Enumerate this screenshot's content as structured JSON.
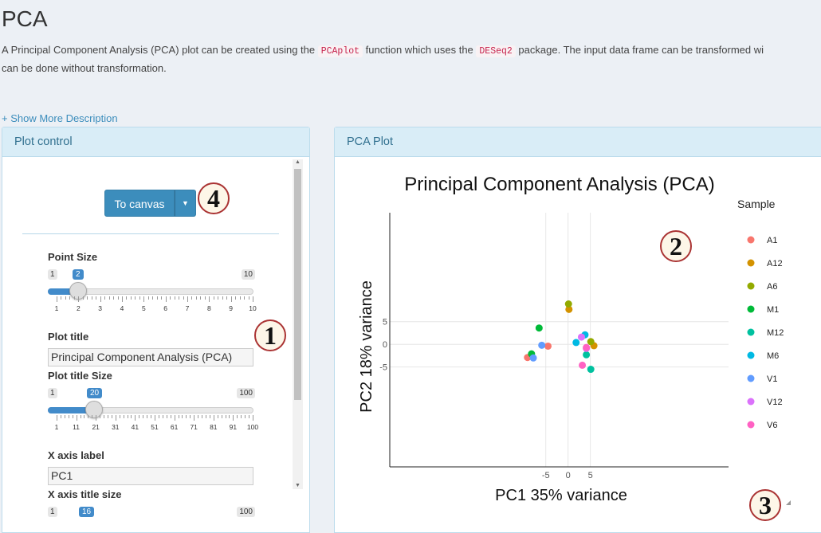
{
  "page": {
    "title": "PCA",
    "description": {
      "part1": "A Principal Component Analysis (PCA) plot can be created using the ",
      "code1": "PCAplot",
      "part2": " function which uses the ",
      "code2": "DESeq2",
      "part3": " package. The input data frame can be transformed wi",
      "line2": "can be done without transformation."
    },
    "show_more": "+ Show More Description"
  },
  "plot_control": {
    "header": "Plot control",
    "to_canvas_label": "To canvas",
    "point_size": {
      "label": "Point Size",
      "min": "1",
      "max": "10",
      "value": "2",
      "ticks": [
        "1",
        "2",
        "3",
        "4",
        "5",
        "6",
        "7",
        "8",
        "9",
        "10"
      ]
    },
    "plot_title": {
      "label": "Plot title",
      "value": "Principal Component Analysis (PCA)"
    },
    "plot_title_size": {
      "label": "Plot title Size",
      "min": "1",
      "max": "100",
      "value": "20",
      "ticks": [
        "1",
        "11",
        "21",
        "31",
        "41",
        "51",
        "61",
        "71",
        "81",
        "91",
        "100"
      ]
    },
    "x_axis_label": {
      "label": "X axis label",
      "value": "PC1"
    },
    "x_axis_title_size": {
      "label": "X axis title size",
      "min": "1",
      "max": "100",
      "value": "16"
    }
  },
  "pca_plot": {
    "header": "PCA Plot"
  },
  "callouts": [
    "1",
    "2",
    "3",
    "4"
  ],
  "chart_data": {
    "type": "scatter",
    "title": "Principal Component Analysis (PCA)",
    "xlabel": "PC1 35% variance",
    "ylabel": "PC2 18% variance",
    "x_ticks": [
      "-5",
      "0",
      "5"
    ],
    "y_ticks": [
      "5",
      "0",
      "-5"
    ],
    "xlim": [
      -40,
      36
    ],
    "ylim": [
      -27,
      29
    ],
    "grid": true,
    "legend": {
      "title": "Sample",
      "placement": "right"
    },
    "series": [
      {
        "name": "A1",
        "color": "#F8766D",
        "points": [
          [
            -9.1,
            -2.9
          ],
          [
            -4.5,
            -0.4
          ]
        ]
      },
      {
        "name": "A12",
        "color": "#D39200",
        "points": [
          [
            0.2,
            7.7
          ],
          [
            5.8,
            -0.3
          ]
        ]
      },
      {
        "name": "A6",
        "color": "#93AA00",
        "points": [
          [
            0.1,
            8.9
          ],
          [
            5.1,
            0.6
          ]
        ]
      },
      {
        "name": "M1",
        "color": "#00BA38",
        "points": [
          [
            -6.5,
            3.6
          ],
          [
            -8.2,
            -2.1
          ]
        ]
      },
      {
        "name": "M12",
        "color": "#00C19F",
        "points": [
          [
            5.1,
            -5.5
          ],
          [
            4.1,
            -2.3
          ]
        ]
      },
      {
        "name": "M6",
        "color": "#00B9E3",
        "points": [
          [
            1.8,
            0.4
          ],
          [
            3.8,
            2.1
          ]
        ]
      },
      {
        "name": "V1",
        "color": "#619CFF",
        "points": [
          [
            -5.9,
            -0.2
          ],
          [
            -7.8,
            -3.0
          ]
        ]
      },
      {
        "name": "V12",
        "color": "#DB72FB",
        "points": [
          [
            3.0,
            1.6
          ],
          [
            4.1,
            -0.9
          ]
        ]
      },
      {
        "name": "V6",
        "color": "#FF61C3",
        "points": [
          [
            3.2,
            -4.6
          ],
          [
            4.1,
            -0.7
          ]
        ]
      }
    ]
  }
}
